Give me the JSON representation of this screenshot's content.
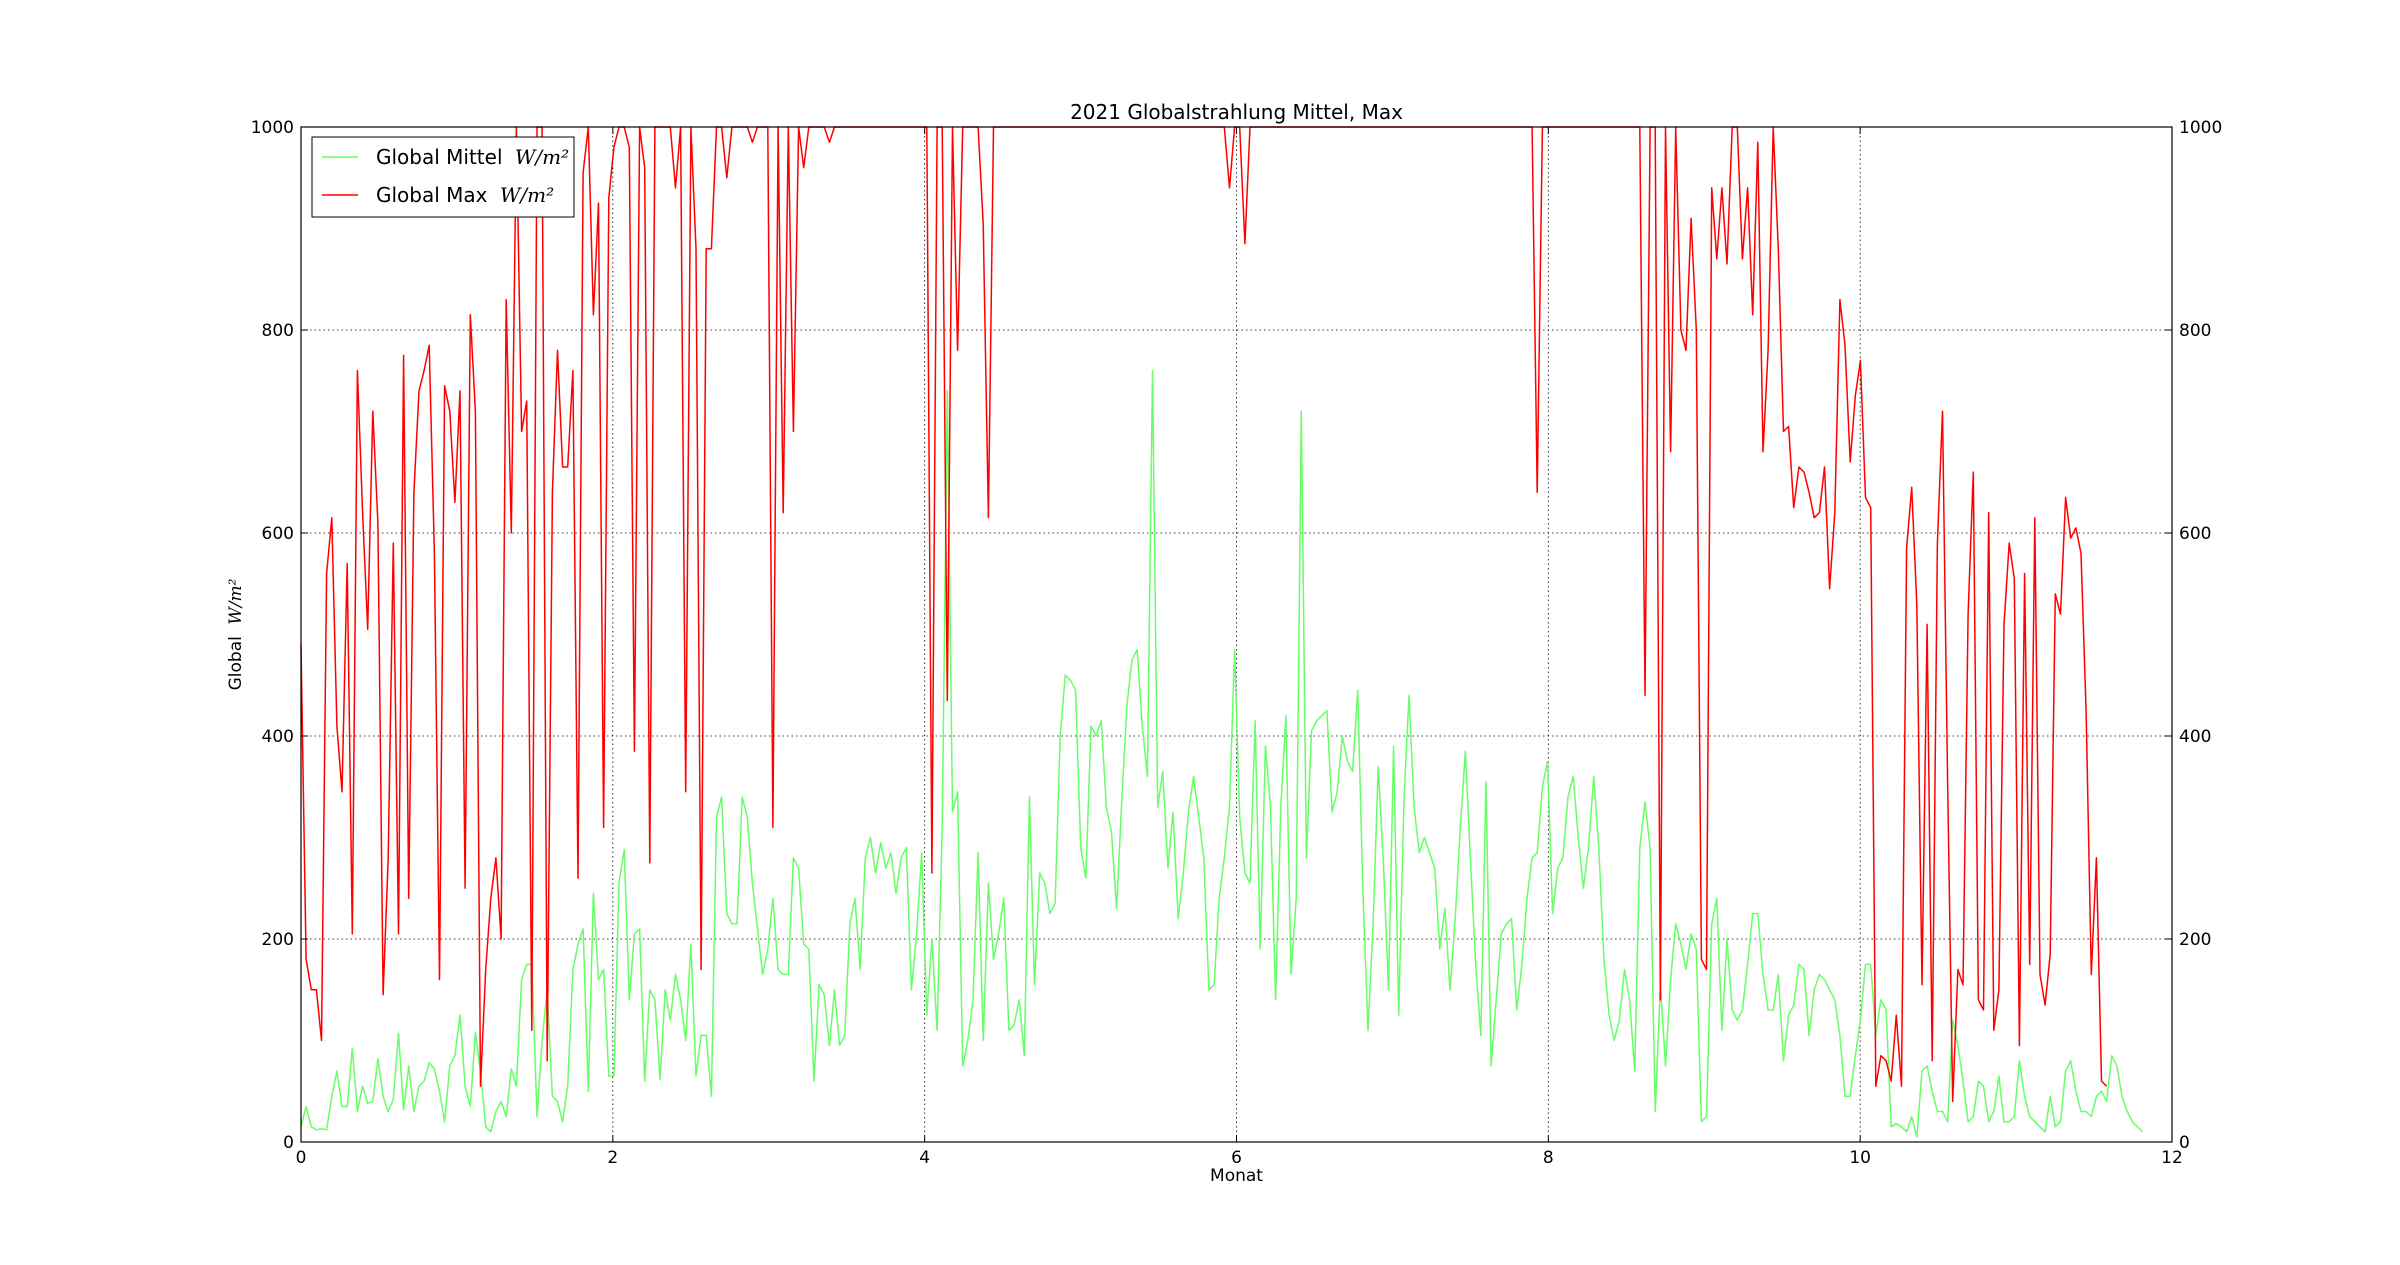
{
  "chart_data": {
    "type": "line",
    "title": "2021 Globalstrahlung Mittel, Max",
    "xlabel": "Monat",
    "ylabel_prefix": "Global",
    "ylabel_unit": "W/m²",
    "xlim": [
      0,
      12
    ],
    "ylim": [
      0,
      1000
    ],
    "x_ticks": [
      "0",
      "2",
      "4",
      "6",
      "8",
      "10",
      "12"
    ],
    "y_ticks": [
      "0",
      "200",
      "400",
      "600",
      "800",
      "1000"
    ],
    "right_axis_ticks": [
      "0",
      "200",
      "400",
      "600",
      "800",
      "1000"
    ],
    "grid": true,
    "legend_position": "upper left",
    "series": [
      {
        "name_prefix": "Global Mittel",
        "name_unit": "W/m²",
        "color": "#66ff66",
        "x_step_months": 0.0329,
        "values": [
          15,
          35,
          15,
          12,
          13,
          12,
          45,
          70,
          35,
          35,
          92,
          30,
          55,
          38,
          40,
          82,
          45,
          30,
          42,
          107,
          32,
          75,
          30,
          55,
          60,
          78,
          72,
          50,
          20,
          75,
          85,
          125,
          55,
          35,
          108,
          70,
          15,
          10,
          30,
          40,
          25,
          72,
          55,
          160,
          175,
          175,
          25,
          100,
          150,
          45,
          40,
          20,
          55,
          170,
          195,
          210,
          50,
          245,
          160,
          170,
          65,
          65,
          255,
          288,
          140,
          205,
          210,
          60,
          150,
          140,
          62,
          150,
          120,
          165,
          140,
          100,
          195,
          65,
          105,
          105,
          45,
          320,
          340,
          225,
          215,
          215,
          340,
          320,
          255,
          210,
          165,
          190,
          240,
          170,
          165,
          165,
          280,
          270,
          195,
          190,
          60,
          155,
          145,
          95,
          150,
          95,
          105,
          215,
          240,
          170,
          280,
          300,
          265,
          295,
          270,
          285,
          245,
          280,
          290,
          150,
          205,
          285,
          125,
          200,
          110,
          310,
          740,
          325,
          345,
          75,
          100,
          140,
          285,
          100,
          255,
          180,
          205,
          240,
          110,
          115,
          140,
          85,
          340,
          155,
          265,
          255,
          225,
          235,
          400,
          460,
          455,
          445,
          290,
          260,
          410,
          400,
          415,
          330,
          305,
          230,
          335,
          430,
          475,
          485,
          410,
          360,
          760,
          330,
          365,
          270,
          325,
          220,
          265,
          325,
          360,
          320,
          280,
          150,
          155,
          240,
          280,
          330,
          485,
          320,
          265,
          255,
          415,
          190,
          390,
          330,
          140,
          330,
          420,
          165,
          240,
          720,
          280,
          405,
          415,
          420,
          425,
          325,
          345,
          400,
          375,
          365,
          445,
          250,
          110,
          215,
          370,
          275,
          150,
          390,
          125,
          335,
          440,
          330,
          285,
          300,
          285,
          270,
          190,
          230,
          150,
          220,
          310,
          385,
          275,
          175,
          105,
          355,
          75,
          140,
          205,
          215,
          220,
          130,
          175,
          240,
          280,
          285,
          350,
          375,
          225,
          270,
          280,
          340,
          360,
          300,
          250,
          290,
          360,
          290,
          180,
          125,
          100,
          120,
          170,
          140,
          70,
          290,
          335,
          290,
          30,
          155,
          75,
          160,
          215,
          195,
          170,
          205,
          190,
          20,
          25,
          215,
          240,
          110,
          200,
          130,
          120,
          130,
          175,
          225,
          225,
          165,
          130,
          130,
          165,
          80,
          125,
          135,
          175,
          170,
          105,
          150,
          165,
          160,
          150,
          140,
          105,
          45,
          45,
          85,
          120,
          175,
          175,
          105,
          140,
          130,
          15,
          18,
          15,
          10,
          25,
          5,
          70,
          75,
          50,
          30,
          30,
          20,
          120,
          95,
          60,
          20,
          25,
          60,
          55,
          20,
          30,
          65,
          20,
          20,
          25,
          80,
          45,
          25,
          20,
          15,
          10,
          45,
          15,
          20,
          70,
          80,
          50,
          30,
          30,
          25,
          45,
          50,
          40,
          85,
          75,
          45,
          30,
          20,
          15,
          10
        ]
      },
      {
        "name_prefix": "Global Max",
        "name_unit": "W/m²",
        "color": "#ff0000",
        "x_step_months": 0.0329,
        "values": [
          490,
          180,
          150,
          150,
          100,
          560,
          615,
          410,
          345,
          570,
          205,
          760,
          620,
          505,
          720,
          610,
          145,
          280,
          590,
          205,
          775,
          240,
          640,
          740,
          760,
          785,
          580,
          160,
          745,
          720,
          630,
          740,
          250,
          815,
          720,
          55,
          170,
          240,
          280,
          200,
          830,
          600,
          1000,
          700,
          730,
          110,
          1000,
          1000,
          80,
          640,
          780,
          665,
          665,
          760,
          260,
          955,
          1000,
          815,
          925,
          310,
          930,
          980,
          1000,
          1000,
          980,
          385,
          1000,
          960,
          275,
          1000,
          1000,
          1000,
          1000,
          940,
          1000,
          345,
          1000,
          880,
          170,
          880,
          880,
          1000,
          1000,
          950,
          1000,
          1000,
          1000,
          1000,
          985,
          1000,
          1000,
          1000,
          310,
          1000,
          620,
          1000,
          700,
          1000,
          960,
          1000,
          1000,
          1000,
          1000,
          985,
          1000,
          1000,
          1000,
          1000,
          1000,
          1000,
          1000,
          1000,
          1000,
          1000,
          1000,
          1000,
          1000,
          1000,
          1000,
          1000,
          1000,
          1000,
          1000,
          265,
          1000,
          1000,
          435,
          1000,
          780,
          1000,
          1000,
          1000,
          1000,
          905,
          615,
          1000,
          1000,
          1000,
          1000,
          1000,
          1000,
          1000,
          1000,
          1000,
          1000,
          1000,
          1000,
          1000,
          1000,
          1000,
          1000,
          1000,
          1000,
          1000,
          1000,
          1000,
          1000,
          1000,
          1000,
          1000,
          1000,
          1000,
          1000,
          1000,
          1000,
          1000,
          1000,
          1000,
          1000,
          1000,
          1000,
          1000,
          1000,
          1000,
          1000,
          1000,
          1000,
          1000,
          1000,
          1000,
          1000,
          940,
          1000,
          1000,
          885,
          1000,
          1000,
          1000,
          1000,
          1000,
          1000,
          1000,
          1000,
          1000,
          1000,
          1000,
          1000,
          1000,
          1000,
          1000,
          1000,
          1000,
          1000,
          1000,
          1000,
          1000,
          1000,
          1000,
          1000,
          1000,
          1000,
          1000,
          1000,
          1000,
          1000,
          1000,
          1000,
          1000,
          1000,
          1000,
          1000,
          1000,
          1000,
          1000,
          1000,
          1000,
          1000,
          1000,
          1000,
          1000,
          1000,
          1000,
          1000,
          1000,
          1000,
          1000,
          1000,
          1000,
          1000,
          1000,
          1000,
          640,
          1000,
          1000,
          1000,
          1000,
          1000,
          1000,
          1000,
          1000,
          1000,
          1000,
          1000,
          1000,
          1000,
          1000,
          1000,
          1000,
          1000,
          1000,
          1000,
          1000,
          440,
          1000,
          1000,
          140,
          1000,
          680,
          1000,
          800,
          780,
          910,
          800,
          180,
          170,
          940,
          870,
          940,
          865,
          1000,
          1000,
          870,
          940,
          815,
          985,
          680,
          780,
          1000,
          880,
          700,
          705,
          625,
          665,
          660,
          640,
          615,
          620,
          665,
          545,
          620,
          830,
          785,
          670,
          735,
          770,
          635,
          625,
          55,
          85,
          80,
          60,
          125,
          55,
          585,
          645,
          530,
          155,
          510,
          80,
          590,
          720,
          355,
          40,
          170,
          155,
          520,
          660,
          140,
          130,
          620,
          110,
          150,
          510,
          590,
          555,
          95,
          560,
          175,
          615,
          165,
          135,
          185,
          540,
          520,
          635,
          595,
          605,
          580,
          425,
          165,
          280,
          60,
          55
        ]
      }
    ]
  }
}
